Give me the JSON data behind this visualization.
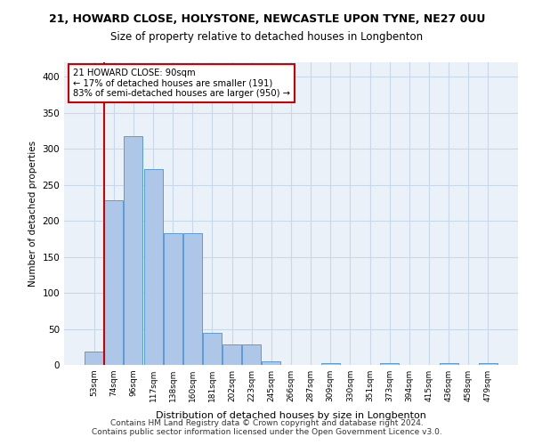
{
  "title_line1": "21, HOWARD CLOSE, HOLYSTONE, NEWCASTLE UPON TYNE, NE27 0UU",
  "title_line2": "Size of property relative to detached houses in Longbenton",
  "xlabel": "Distribution of detached houses by size in Longbenton",
  "ylabel": "Number of detached properties",
  "footer_line1": "Contains HM Land Registry data © Crown copyright and database right 2024.",
  "footer_line2": "Contains public sector information licensed under the Open Government Licence v3.0.",
  "categories": [
    "53sqm",
    "74sqm",
    "96sqm",
    "117sqm",
    "138sqm",
    "160sqm",
    "181sqm",
    "202sqm",
    "223sqm",
    "245sqm",
    "266sqm",
    "287sqm",
    "309sqm",
    "330sqm",
    "351sqm",
    "373sqm",
    "394sqm",
    "415sqm",
    "436sqm",
    "458sqm",
    "479sqm"
  ],
  "values": [
    18,
    228,
    318,
    272,
    183,
    183,
    45,
    28,
    28,
    5,
    0,
    0,
    2,
    0,
    0,
    2,
    0,
    0,
    2,
    0,
    2
  ],
  "bar_color": "#aec6e8",
  "bar_edge_color": "#5b9bd5",
  "grid_color": "#c8d8e8",
  "background_color": "#eaf1f8",
  "annotation_line1": "21 HOWARD CLOSE: 90sqm",
  "annotation_line2": "← 17% of detached houses are smaller (191)",
  "annotation_line3": "83% of semi-detached houses are larger (950) →",
  "annotation_box_color": "#ffffff",
  "annotation_box_edge_color": "#cc0000",
  "vline_x_offset": 0.5,
  "vline_color": "#cc0000",
  "ylim": [
    0,
    420
  ],
  "yticks": [
    0,
    50,
    100,
    150,
    200,
    250,
    300,
    350,
    400
  ]
}
